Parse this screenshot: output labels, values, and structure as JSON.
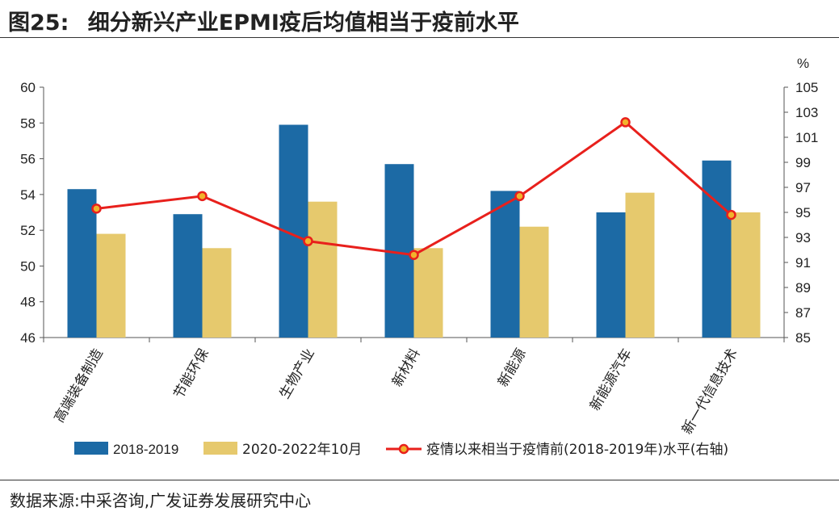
{
  "header": {
    "figure_label": "图25:",
    "title": "细分新兴产业EPMI疫后均值相当于疫前水平"
  },
  "footer": {
    "source": "数据来源:中采咨询,广发证券发展研究中心"
  },
  "colors": {
    "series_2018": "#1c6aa5",
    "series_2020": "#e6c96d",
    "series_line": "#e8201c",
    "marker_fill": "#f2b32c",
    "axis": "#555555"
  },
  "chart_data": {
    "type": "bar",
    "title": "细分新兴产业EPMI疫后均值相当于疫前水平",
    "categories": [
      "高端装备制造",
      "节能环保",
      "生物产业",
      "新材料",
      "新能源",
      "新能源汽车",
      "新一代信息技术"
    ],
    "series": [
      {
        "name": "2018-2019",
        "kind": "bar",
        "axis": "left",
        "values": [
          54.3,
          52.9,
          57.9,
          55.7,
          54.2,
          53.0,
          55.9
        ]
      },
      {
        "name": "2020-2022年10月",
        "kind": "bar",
        "axis": "left",
        "values": [
          51.8,
          51.0,
          53.6,
          51.0,
          52.2,
          54.1,
          53.0
        ]
      },
      {
        "name": "疫情以来相当于疫情前(2018-2019年)水平(右轴)",
        "kind": "line",
        "axis": "right",
        "values": [
          95.3,
          96.3,
          92.7,
          91.6,
          96.3,
          102.2,
          94.8
        ]
      }
    ],
    "left_axis": {
      "range": [
        46,
        60
      ],
      "ticks": [
        "46",
        "48",
        "50",
        "52",
        "54",
        "56",
        "58",
        "60"
      ]
    },
    "right_axis": {
      "unit": "%",
      "range": [
        85,
        105
      ],
      "ticks": [
        "85",
        "87",
        "89",
        "91",
        "93",
        "95",
        "97",
        "99",
        "101",
        "103",
        "105"
      ]
    },
    "legend_position": "bottom"
  }
}
